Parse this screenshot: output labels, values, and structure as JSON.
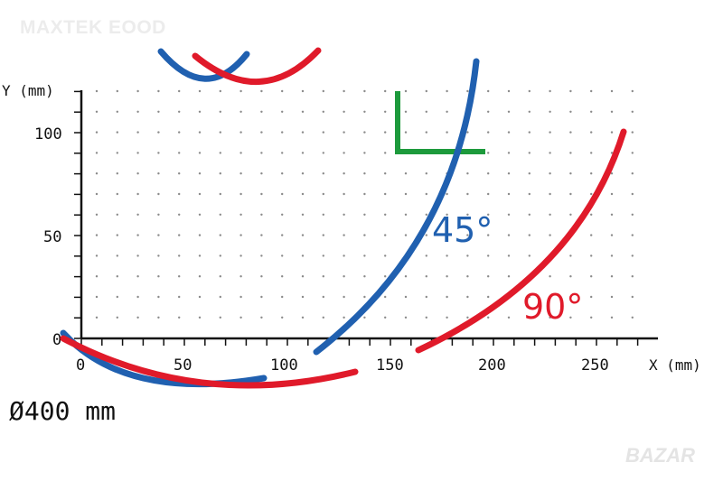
{
  "brand_text": "MAXTEK EOOD",
  "watermark_text": "BAZAR",
  "diameter_label": "Ø400 mm",
  "axes": {
    "x_label": "X (mm)",
    "y_label": "Y (mm)",
    "x_ticks": [
      "0",
      "50",
      "100",
      "150",
      "200",
      "250"
    ],
    "y_ticks": [
      "0",
      "50",
      "100"
    ]
  },
  "bends": [
    {
      "label": "45°",
      "color": "#2060b0"
    },
    {
      "label": "90°",
      "color": "#e01a2a"
    }
  ],
  "corner_color": "#1d9a3c",
  "grid": true
}
